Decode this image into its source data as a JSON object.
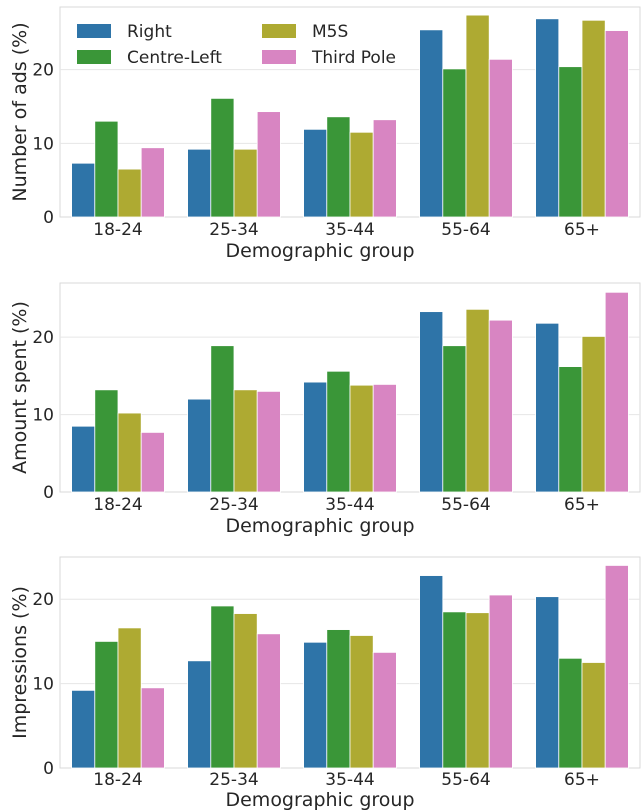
{
  "chart_data": [
    {
      "type": "bar",
      "categories": [
        "18-24",
        "25-34",
        "35-44",
        "55-64",
        "65+"
      ],
      "series": [
        {
          "name": "Right",
          "color": "#2e74a8",
          "values": [
            7.3,
            9.2,
            11.9,
            25.4,
            26.9
          ]
        },
        {
          "name": "Centre-Left",
          "color": "#3a9638",
          "values": [
            13.0,
            16.1,
            13.6,
            20.1,
            20.4
          ]
        },
        {
          "name": "M5S",
          "color": "#aeaa32",
          "values": [
            6.5,
            9.2,
            11.5,
            27.4,
            26.7
          ]
        },
        {
          "name": "Third Pole",
          "color": "#d885c2",
          "values": [
            9.4,
            14.3,
            13.2,
            21.4,
            25.3
          ]
        }
      ],
      "xlabel": "Demographic group",
      "ylabel": "Number of ads (%)",
      "ylim": [
        0,
        28.5
      ],
      "yticks": [
        0,
        10,
        20
      ],
      "grid": true,
      "legend": "top-left"
    },
    {
      "type": "bar",
      "categories": [
        "18-24",
        "25-34",
        "35-44",
        "55-64",
        "65+"
      ],
      "series": [
        {
          "name": "Right",
          "color": "#2e74a8",
          "values": [
            8.5,
            12.0,
            14.2,
            23.3,
            21.8
          ]
        },
        {
          "name": "Centre-Left",
          "color": "#3a9638",
          "values": [
            13.2,
            18.9,
            15.6,
            18.9,
            16.2
          ]
        },
        {
          "name": "M5S",
          "color": "#aeaa32",
          "values": [
            10.2,
            13.2,
            13.8,
            23.6,
            20.1
          ]
        },
        {
          "name": "Third Pole",
          "color": "#d885c2",
          "values": [
            7.7,
            13.0,
            13.9,
            22.2,
            25.8
          ]
        }
      ],
      "xlabel": "Demographic group",
      "ylabel": "Amount spent (%)",
      "ylim": [
        0,
        27
      ],
      "yticks": [
        0,
        10,
        20
      ],
      "grid": true,
      "legend": "none"
    },
    {
      "type": "bar",
      "categories": [
        "18-24",
        "25-34",
        "35-44",
        "55-64",
        "65+"
      ],
      "series": [
        {
          "name": "Right",
          "color": "#2e74a8",
          "values": [
            9.2,
            12.7,
            14.9,
            22.8,
            20.3
          ]
        },
        {
          "name": "Centre-Left",
          "color": "#3a9638",
          "values": [
            15.0,
            19.2,
            16.4,
            18.5,
            13.0
          ]
        },
        {
          "name": "M5S",
          "color": "#aeaa32",
          "values": [
            16.6,
            18.3,
            15.7,
            18.4,
            12.5
          ]
        },
        {
          "name": "Third Pole",
          "color": "#d885c2",
          "values": [
            9.5,
            15.9,
            13.7,
            20.5,
            24.0
          ]
        }
      ],
      "xlabel": "Demographic group",
      "ylabel": "Impressions (%)",
      "ylim": [
        0,
        25
      ],
      "yticks": [
        0,
        10,
        20
      ],
      "grid": true,
      "legend": "none"
    }
  ]
}
